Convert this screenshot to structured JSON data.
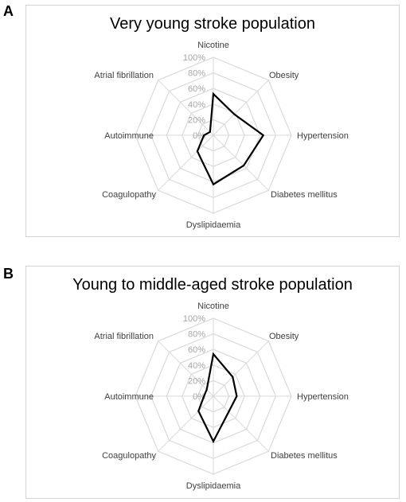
{
  "panels": [
    {
      "letter": "A",
      "title": "Very young stroke population"
    },
    {
      "letter": "B",
      "title": "Young to middle-aged stroke population"
    }
  ],
  "chart_data": [
    {
      "type": "radar",
      "title": "Very young stroke population",
      "categories": [
        "Nicotine",
        "Obesity",
        "Hypertension",
        "Diabetes mellitus",
        "Dyslipidaemia",
        "Coagulopathy",
        "Autoimmune",
        "Atrial fibrillation"
      ],
      "tick_labels": [
        "0%",
        "20%",
        "40%",
        "60%",
        "80%",
        "100%"
      ],
      "range": [
        0,
        100
      ],
      "series": [
        {
          "values": [
            53,
            38,
            64,
            55,
            63,
            29,
            12,
            6
          ],
          "color": "#000000"
        }
      ],
      "grid_color": "#d9d9d9"
    },
    {
      "type": "radar",
      "title": "Young to middle-aged stroke population",
      "categories": [
        "Nicotine",
        "Obesity",
        "Hypertension",
        "Diabetes mellitus",
        "Dyslipidaemia",
        "Coagulopathy",
        "Autoimmune",
        "Atrial fibrillation"
      ],
      "tick_labels": [
        "0%",
        "20%",
        "40%",
        "60%",
        "80%",
        "100%"
      ],
      "range": [
        0,
        100
      ],
      "series": [
        {
          "values": [
            54,
            35,
            30,
            28,
            58,
            27,
            12,
            12
          ],
          "color": "#000000"
        }
      ],
      "grid_color": "#d9d9d9"
    }
  ]
}
